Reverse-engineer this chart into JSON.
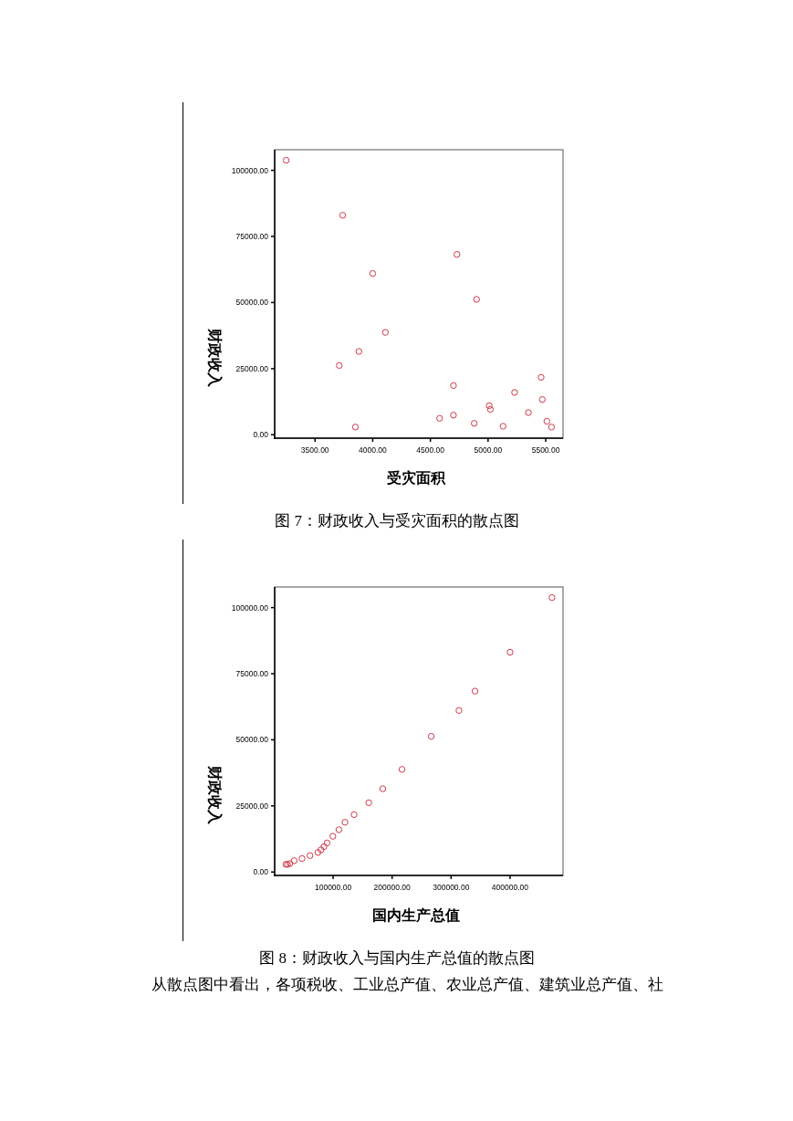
{
  "chart_data": [
    {
      "type": "scatter",
      "title": "图 7：财政收入与受灾面积的散点图",
      "xlabel": "受灾面积",
      "ylabel": "财政收入",
      "marker": "circle",
      "series": [
        {
          "color": "#d03a4a",
          "x": [
            3250,
            3740,
            4730,
            4000,
            4900,
            4110,
            3880,
            3710,
            5460,
            4700,
            5230,
            5470,
            5010,
            5020,
            5350,
            4580,
            4700,
            4880,
            5510,
            5130,
            5550,
            3850
          ],
          "values": [
            103800,
            83000,
            68200,
            61000,
            51200,
            38700,
            31500,
            26200,
            21700,
            18600,
            16000,
            13300,
            11000,
            9600,
            8400,
            6200,
            7400,
            4300,
            5100,
            3200,
            2900,
            2900
          ]
        }
      ],
      "xlim": [
        3150,
        5650
      ],
      "ylim": [
        -1300,
        107800
      ],
      "xticks": [
        {
          "value": 3500,
          "label": "3500.00"
        },
        {
          "value": 4000,
          "label": "4000.00"
        },
        {
          "value": 4500,
          "label": "4500.00"
        },
        {
          "value": 5000,
          "label": "5000.00"
        },
        {
          "value": 5500,
          "label": "5500.00"
        }
      ],
      "yticks": [
        {
          "value": 0,
          "label": "0.00"
        },
        {
          "value": 25000,
          "label": "25000.00"
        },
        {
          "value": 50000,
          "label": "50000.00"
        },
        {
          "value": 75000,
          "label": "75000.00"
        },
        {
          "value": 100000,
          "label": "100000.00"
        }
      ]
    },
    {
      "type": "scatter",
      "title": "图 8：财政收入与国内生产总值的散点图",
      "xlabel": "国内生产总值",
      "ylabel": "财政收入",
      "marker": "circle",
      "annotations": [
        "从散点图中看出，各项税收、工业总产值、农业总产值、建筑业总产值、社"
      ],
      "series": [
        {
          "color": "#d03a4a",
          "x": [
            471000,
            400000,
            340600,
            313300,
            266300,
            216700,
            184200,
            160400,
            135600,
            120100,
            109800,
            99500,
            89700,
            84500,
            79400,
            74200,
            60800,
            47300,
            33900,
            26700,
            22600,
            20000
          ],
          "values": [
            103800,
            83100,
            68400,
            61100,
            51300,
            38800,
            31500,
            26200,
            21700,
            18800,
            16000,
            13500,
            11000,
            9600,
            8400,
            7400,
            6200,
            5100,
            4300,
            3200,
            2900,
            2900
          ]
        }
      ],
      "xlim": [
        900,
        489800
      ],
      "ylim": [
        -1300,
        107800
      ],
      "xticks": [
        {
          "value": 100000,
          "label": "100000.00"
        },
        {
          "value": 200000,
          "label": "200000.00"
        },
        {
          "value": 300000,
          "label": "300000.00"
        },
        {
          "value": 400000,
          "label": "400000.00"
        }
      ],
      "yticks": [
        {
          "value": 0,
          "label": "0.00"
        },
        {
          "value": 25000,
          "label": "25000.00"
        },
        {
          "value": 50000,
          "label": "50000.00"
        },
        {
          "value": 75000,
          "label": "75000.00"
        },
        {
          "value": 100000,
          "label": "100000.00"
        }
      ]
    }
  ]
}
